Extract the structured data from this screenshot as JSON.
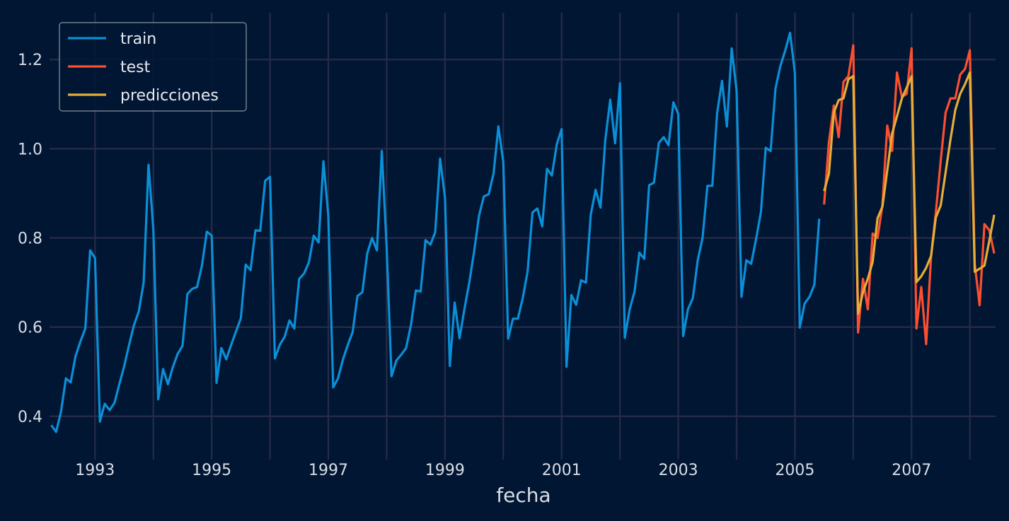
{
  "chart_data": {
    "type": "line",
    "title": "",
    "xlabel": "fecha",
    "ylabel": "",
    "xlim": [
      1992.22,
      2008.44
    ],
    "ylim": [
      0.319,
      1.305
    ],
    "grid": true,
    "legend_placement": "top-left",
    "x_ticks": [
      "1993",
      "1995",
      "1997",
      "1999",
      "2001",
      "2003",
      "2005",
      "2007"
    ],
    "y_ticks": [
      "0.4",
      "0.6",
      "0.8",
      "1.0",
      "1.2"
    ],
    "frequency": "monthly",
    "colors": {
      "background": "#011633",
      "grid": "#262c48",
      "train": "#0b8fd6",
      "test": "#fc4f30",
      "predicciones": "#e5ae38"
    },
    "series": [
      {
        "name": "train",
        "start": "1992-04",
        "values": [
          0.38,
          0.365,
          0.41,
          0.485,
          0.476,
          0.535,
          0.568,
          0.597,
          0.772,
          0.755,
          0.388,
          0.428,
          0.414,
          0.43,
          0.472,
          0.512,
          0.56,
          0.604,
          0.635,
          0.7,
          0.964,
          0.82,
          0.438,
          0.506,
          0.472,
          0.51,
          0.54,
          0.558,
          0.674,
          0.686,
          0.69,
          0.738,
          0.814,
          0.805,
          0.475,
          0.553,
          0.528,
          0.56,
          0.59,
          0.62,
          0.74,
          0.728,
          0.817,
          0.816,
          0.928,
          0.937,
          0.53,
          0.56,
          0.578,
          0.615,
          0.597,
          0.708,
          0.72,
          0.745,
          0.805,
          0.79,
          0.972,
          0.85,
          0.465,
          0.485,
          0.527,
          0.56,
          0.589,
          0.67,
          0.678,
          0.765,
          0.8,
          0.772,
          0.995,
          0.78,
          0.49,
          0.525,
          0.538,
          0.553,
          0.605,
          0.682,
          0.68,
          0.795,
          0.785,
          0.813,
          0.978,
          0.89,
          0.513,
          0.655,
          0.575,
          0.64,
          0.7,
          0.77,
          0.85,
          0.893,
          0.898,
          0.945,
          1.05,
          0.97,
          0.574,
          0.619,
          0.619,
          0.665,
          0.724,
          0.857,
          0.866,
          0.826,
          0.955,
          0.94,
          1.01,
          1.044,
          0.511,
          0.672,
          0.65,
          0.705,
          0.7,
          0.852,
          0.908,
          0.868,
          1.02,
          1.11,
          1.012,
          1.147,
          0.576,
          0.64,
          0.68,
          0.767,
          0.753,
          0.918,
          0.924,
          1.013,
          1.026,
          1.008,
          1.104,
          1.078,
          0.58,
          0.64,
          0.665,
          0.75,
          0.8,
          0.917,
          0.917,
          1.08,
          1.152,
          1.05,
          1.225,
          1.13,
          0.668,
          0.75,
          0.742,
          0.797,
          0.858,
          1.002,
          0.995,
          1.135,
          1.185,
          1.22,
          1.26,
          1.17,
          0.599,
          0.653,
          0.668,
          0.695,
          0.843
        ]
      },
      {
        "name": "test",
        "start": "2005-07",
        "values": [
          0.875,
          1.015,
          1.097,
          1.026,
          1.15,
          1.163,
          1.232,
          0.588,
          0.708,
          0.64,
          0.81,
          0.8,
          0.873,
          1.052,
          0.995,
          1.171,
          1.116,
          1.123,
          1.225,
          0.597,
          0.69,
          0.562,
          0.757,
          0.857,
          0.973,
          1.081,
          1.113,
          1.113,
          1.166,
          1.179,
          1.221,
          0.741,
          0.649,
          0.831,
          0.817,
          0.765
        ]
      },
      {
        "name": "predicciones",
        "start": "2005-07",
        "values": [
          0.905,
          0.944,
          1.081,
          1.109,
          1.113,
          1.156,
          1.163,
          0.63,
          0.678,
          0.709,
          0.746,
          0.844,
          0.87,
          0.952,
          1.034,
          1.073,
          1.113,
          1.137,
          1.163,
          0.701,
          0.714,
          0.733,
          0.759,
          0.846,
          0.873,
          0.947,
          1.021,
          1.087,
          1.123,
          1.145,
          1.171,
          0.724,
          0.731,
          0.738,
          0.794,
          0.852
        ]
      }
    ]
  }
}
